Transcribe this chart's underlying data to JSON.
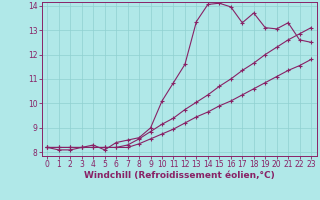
{
  "xlabel": "Windchill (Refroidissement éolien,°C)",
  "ylabel": "",
  "bg_color": "#b0e8e8",
  "grid_color": "#90d0d0",
  "line_color": "#882266",
  "spine_color": "#882266",
  "xlim": [
    -0.5,
    23.5
  ],
  "ylim": [
    7.85,
    14.15
  ],
  "xticks": [
    0,
    1,
    2,
    3,
    4,
    5,
    6,
    7,
    8,
    9,
    10,
    11,
    12,
    13,
    14,
    15,
    16,
    17,
    18,
    19,
    20,
    21,
    22,
    23
  ],
  "yticks": [
    8,
    9,
    10,
    11,
    12,
    13,
    14
  ],
  "line1_y": [
    8.2,
    8.1,
    8.1,
    8.2,
    8.3,
    8.1,
    8.4,
    8.5,
    8.6,
    9.0,
    10.1,
    10.85,
    11.6,
    13.35,
    14.05,
    14.1,
    13.95,
    13.3,
    13.7,
    13.1,
    13.05,
    13.3,
    12.6,
    12.5
  ],
  "line2_y": [
    8.2,
    8.2,
    8.2,
    8.2,
    8.2,
    8.2,
    8.2,
    8.3,
    8.55,
    8.85,
    9.15,
    9.4,
    9.75,
    10.05,
    10.35,
    10.7,
    11.0,
    11.35,
    11.65,
    12.0,
    12.3,
    12.6,
    12.85,
    13.1
  ],
  "line3_y": [
    8.2,
    8.2,
    8.2,
    8.2,
    8.2,
    8.2,
    8.2,
    8.2,
    8.35,
    8.55,
    8.75,
    8.95,
    9.2,
    9.45,
    9.65,
    9.9,
    10.1,
    10.35,
    10.6,
    10.85,
    11.1,
    11.35,
    11.55,
    11.8
  ],
  "marker": "+",
  "marker_size": 3,
  "marker_edge_width": 0.8,
  "line_width": 0.8,
  "tick_fontsize": 5.5,
  "xlabel_fontsize": 6.5,
  "xlabel_fontweight": "bold"
}
